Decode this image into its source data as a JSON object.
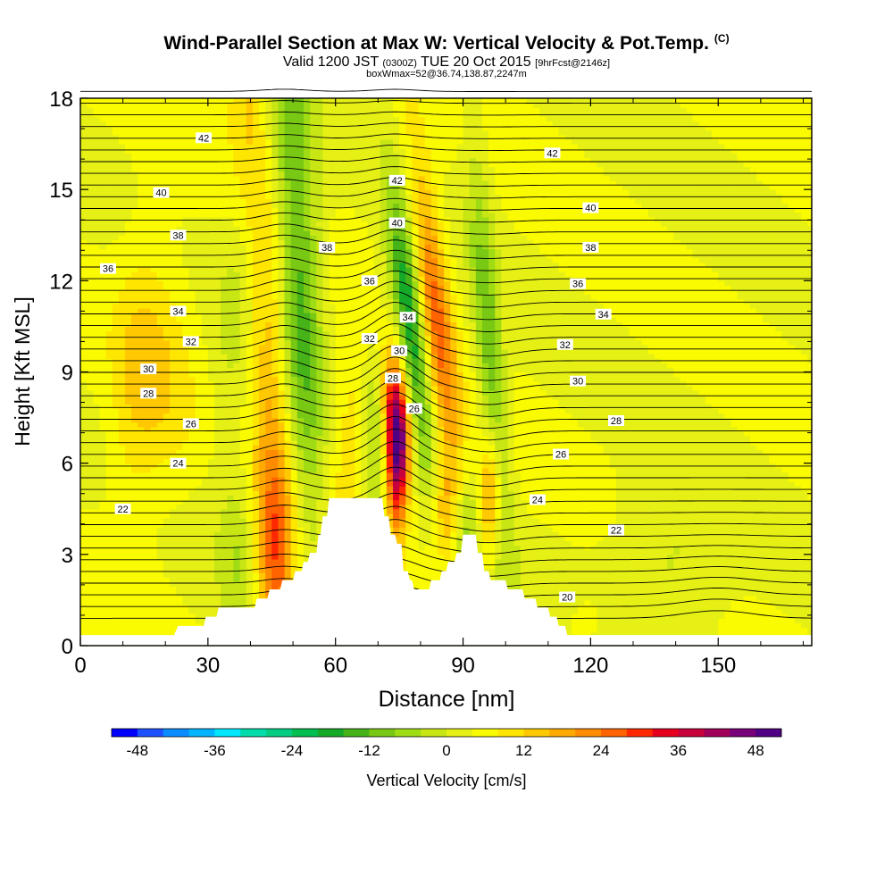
{
  "header": {
    "title": "Wind-Parallel Section at Max W: Vertical Velocity & Pot.Temp.",
    "corner_mark": "(C)",
    "valid_prefix": "Valid 1200 JST",
    "valid_z": "(0300Z)",
    "valid_date": "TUE 20 Oct 2015",
    "forecast": "[9hrFcst@2146z]",
    "box_info": "boxWmax=52@36.74,138.87,2247m"
  },
  "chart_data": {
    "type": "heatmap",
    "xlabel": "Distance [nm]",
    "ylabel": "Height [Kft MSL]",
    "xlim": [
      0,
      172
    ],
    "ylim": [
      0,
      18
    ],
    "x_ticks": [
      0,
      30,
      60,
      90,
      120,
      150
    ],
    "y_ticks": [
      0,
      3,
      6,
      9,
      12,
      15,
      18
    ],
    "colorbar": {
      "label": "Vertical Velocity [cm/s]",
      "min": -52,
      "max": 52,
      "step": 4,
      "tick_values": [
        -48,
        -36,
        -24,
        -12,
        0,
        12,
        24,
        36,
        48
      ],
      "tick_labels": [
        "-48",
        "-36",
        "-24",
        "-12",
        "0",
        "12",
        "24",
        "36",
        "48"
      ],
      "colors": [
        "#0000ff",
        "#1e50ff",
        "#0a8cff",
        "#00b4ff",
        "#00e6ff",
        "#00dcaa",
        "#00cd82",
        "#00be50",
        "#14aa28",
        "#46b419",
        "#78c814",
        "#a0dc14",
        "#c8e614",
        "#e6f014",
        "#fafa00",
        "#ffe600",
        "#ffc800",
        "#ffaa00",
        "#ff8c00",
        "#ff6400",
        "#ff2800",
        "#e6001e",
        "#c8003c",
        "#a0005a",
        "#780078",
        "#500082"
      ]
    },
    "terrain_kft": [
      [
        0,
        0.35
      ],
      [
        22,
        0.35
      ],
      [
        23,
        0.65
      ],
      [
        29,
        0.65
      ],
      [
        29.5,
        0.95
      ],
      [
        32,
        0.95
      ],
      [
        32.5,
        1.25
      ],
      [
        41,
        1.25
      ],
      [
        41.5,
        1.55
      ],
      [
        44,
        1.55
      ],
      [
        44.5,
        1.85
      ],
      [
        47,
        1.85
      ],
      [
        47.5,
        2.15
      ],
      [
        50,
        2.15
      ],
      [
        50.5,
        2.45
      ],
      [
        52,
        2.45
      ],
      [
        52.5,
        2.75
      ],
      [
        53.5,
        2.75
      ],
      [
        54,
        3.05
      ],
      [
        55.5,
        3.05
      ],
      [
        56,
        3.65
      ],
      [
        56.5,
        3.65
      ],
      [
        57,
        4.25
      ],
      [
        58,
        4.25
      ],
      [
        58.5,
        4.85
      ],
      [
        71,
        4.85
      ],
      [
        71.5,
        4.25
      ],
      [
        72.5,
        4.25
      ],
      [
        73,
        3.65
      ],
      [
        74,
        3.65
      ],
      [
        74.5,
        3.35
      ],
      [
        75.5,
        3.35
      ],
      [
        76,
        2.45
      ],
      [
        77,
        2.45
      ],
      [
        77.5,
        2.15
      ],
      [
        78,
        2.15
      ],
      [
        78.5,
        1.85
      ],
      [
        82,
        1.85
      ],
      [
        82.5,
        2.15
      ],
      [
        84.5,
        2.15
      ],
      [
        85,
        2.45
      ],
      [
        86,
        2.45
      ],
      [
        86.5,
        2.75
      ],
      [
        88,
        2.75
      ],
      [
        88.5,
        3.05
      ],
      [
        89.5,
        3.05
      ],
      [
        90,
        3.65
      ],
      [
        93,
        3.65
      ],
      [
        93.5,
        3.05
      ],
      [
        94.5,
        3.05
      ],
      [
        95,
        2.45
      ],
      [
        96,
        2.45
      ],
      [
        96.5,
        2.15
      ],
      [
        100,
        2.15
      ],
      [
        100.5,
        1.85
      ],
      [
        104,
        1.85
      ],
      [
        104.5,
        1.55
      ],
      [
        107,
        1.55
      ],
      [
        107.5,
        1.25
      ],
      [
        110,
        1.25
      ],
      [
        110.5,
        0.95
      ],
      [
        112,
        0.95
      ],
      [
        112.5,
        0.65
      ],
      [
        114,
        0.65
      ],
      [
        114.5,
        0.35
      ],
      [
        172,
        0.35
      ]
    ],
    "isentrope_labels": [
      {
        "value": "42",
        "x": 29,
        "z": 16.7
      },
      {
        "value": "42",
        "x": 111,
        "z": 16.2
      },
      {
        "value": "42",
        "x": 74.5,
        "z": 15.3
      },
      {
        "value": "40",
        "x": 19,
        "z": 14.9
      },
      {
        "value": "40",
        "x": 120,
        "z": 14.4
      },
      {
        "value": "40",
        "x": 74.5,
        "z": 13.9
      },
      {
        "value": "38",
        "x": 23,
        "z": 13.5
      },
      {
        "value": "38",
        "x": 58,
        "z": 13.1
      },
      {
        "value": "38",
        "x": 120,
        "z": 13.1
      },
      {
        "value": "36",
        "x": 6.5,
        "z": 12.4
      },
      {
        "value": "36",
        "x": 68,
        "z": 12.0
      },
      {
        "value": "36",
        "x": 117,
        "z": 11.9
      },
      {
        "value": "34",
        "x": 23,
        "z": 11.0
      },
      {
        "value": "34",
        "x": 77,
        "z": 10.8
      },
      {
        "value": "34",
        "x": 123,
        "z": 10.9
      },
      {
        "value": "32",
        "x": 26,
        "z": 10.0
      },
      {
        "value": "32",
        "x": 68,
        "z": 10.1
      },
      {
        "value": "32",
        "x": 114,
        "z": 9.9
      },
      {
        "value": "30",
        "x": 16,
        "z": 9.1
      },
      {
        "value": "30",
        "x": 75,
        "z": 9.7
      },
      {
        "value": "30",
        "x": 117,
        "z": 8.7
      },
      {
        "value": "28",
        "x": 16,
        "z": 8.3
      },
      {
        "value": "28",
        "x": 73.5,
        "z": 8.8
      },
      {
        "value": "28",
        "x": 126,
        "z": 7.4
      },
      {
        "value": "26",
        "x": 26,
        "z": 7.3
      },
      {
        "value": "26",
        "x": 78.5,
        "z": 7.8
      },
      {
        "value": "26",
        "x": 113,
        "z": 6.3
      },
      {
        "value": "24",
        "x": 23,
        "z": 6.0
      },
      {
        "value": "24",
        "x": 107.5,
        "z": 4.8
      },
      {
        "value": "22",
        "x": 10,
        "z": 4.5
      },
      {
        "value": "22",
        "x": 126,
        "z": 3.8
      },
      {
        "value": "20",
        "x": 114.5,
        "z": 1.6
      }
    ]
  }
}
